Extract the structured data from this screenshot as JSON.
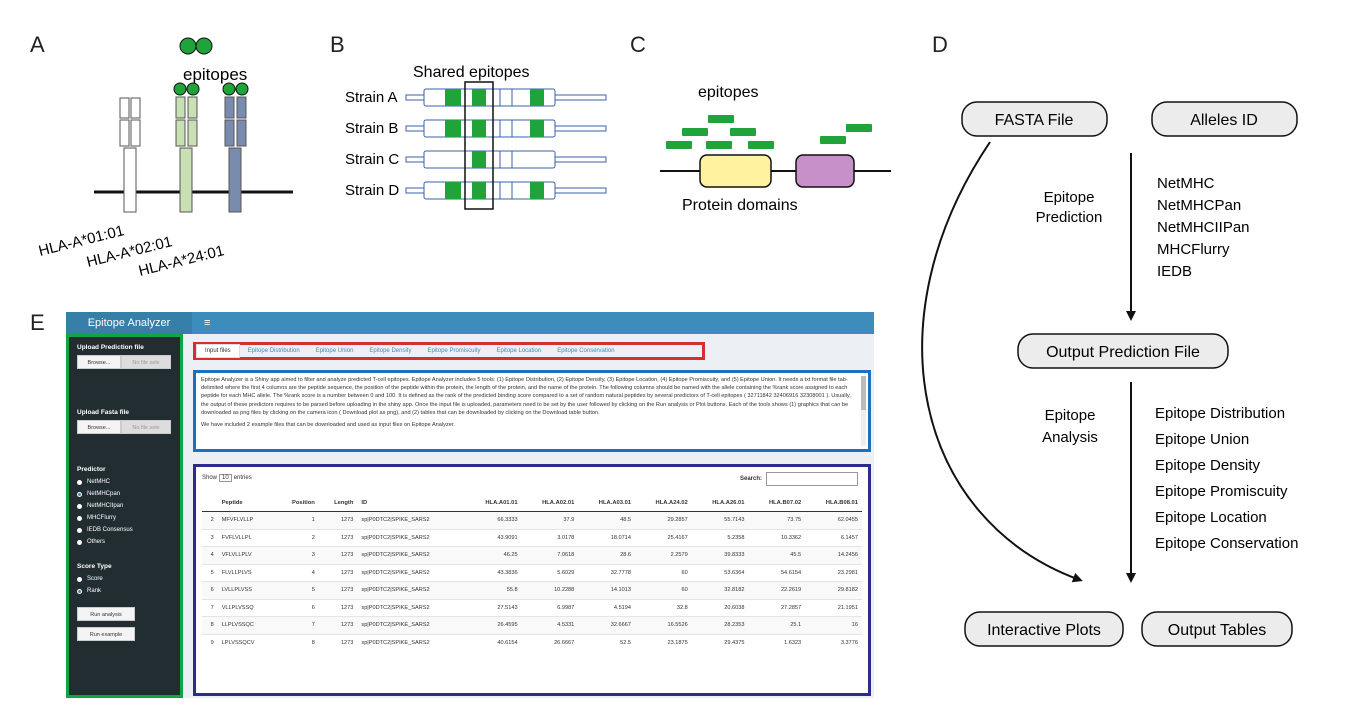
{
  "panels": {
    "a": {
      "letter": "A",
      "epitopes_label": "epitopes",
      "alleles": [
        "HLA-A*01:01",
        "HLA-A*02:01",
        "HLA-A*24:01"
      ]
    },
    "b": {
      "letter": "B",
      "shared_label": "Shared epitopes",
      "strains": [
        "Strain A",
        "Strain B",
        "Strain C",
        "Strain D"
      ]
    },
    "c": {
      "letter": "C",
      "epitopes_label": "epitopes",
      "domains_label": "Protein domains"
    },
    "d": {
      "letter": "D",
      "fasta": "FASTA File",
      "alleles": "Alleles ID",
      "prediction_label_1": "Epitope",
      "prediction_label_2": "Prediction",
      "predictors": [
        "NetMHC",
        "NetMHCPan",
        "NetMHCIIPan",
        "MHCFlurry",
        "IEDB"
      ],
      "output_prediction": "Output Prediction File",
      "analysis_label_1": "Epitope",
      "analysis_label_2": "Analysis",
      "analyses": [
        "Epitope Distribution",
        "Epitope Union",
        "Epitope Density",
        "Epitope Promiscuity",
        "Epitope Location",
        "Epitope Conservation"
      ],
      "plots": "Interactive Plots",
      "tables": "Output Tables"
    },
    "e": {
      "letter": "E"
    }
  },
  "colors": {
    "epitope_green": "#1fa33a",
    "light_green": "#c9e0b4",
    "slate_blue": "#7a8bb0",
    "domain_yellow": "#fff3a0",
    "domain_purple": "#c890c8",
    "sidebar_border": "#11a34a",
    "tabs_border": "#d32f2f",
    "desc_border": "#1f6fbf",
    "table_border": "#2c2c8a",
    "header_blue": "#3c8dbc"
  },
  "app": {
    "brand": "Epitope Analyzer",
    "menu_icon": "≡",
    "sidebar": {
      "upload_prediction_label": "Upload Prediction file",
      "upload_fasta_label": "Upload Fasta file",
      "browse": "Browse...",
      "no_file": "No file sele",
      "predictor_label": "Predictor",
      "predictors": [
        "NetMHC",
        "NetMHCpan",
        "NetMHCIIpan",
        "MHCFlurry",
        "IEDB Consensus",
        "Others"
      ],
      "predictor_selected": 1,
      "score_type_label": "Score Type",
      "score_types": [
        "Score",
        "Rank"
      ],
      "score_selected": 1,
      "run_analysis": "Run analysis",
      "run_example": "Run example"
    },
    "tabs": [
      "Input files",
      "Epitope Distribution",
      "Epitope Union",
      "Epitope Density",
      "Epitope Promiscuity",
      "Epitope Location",
      "Epitope Conservation"
    ],
    "desc": {
      "p1": "Epitope Analyzer is a Shiny app aimed to filter and analyze predicted T-cell epitopes. Epitope Analyzer includes 5 tools: (1) Epitope Distribution, (2) Epitope Density, (3) Epitope Location, (4) Epitope Promiscuity, and (5) Epitope Union. It needs a txt format file tab-delimited where the first 4 columns are the peptide sequence, the position of the peptide within the protein, the length of the protein, and the name of the protein. The following columns should be named with the allele containing the %rank score assigned to each peptide for each MHC allele. The %rank score is a number between 0 and 100. It is defined as the rank of the predicted binding score compared to a set of random natural peptides by several predictors of T-cell epitopes ( 32711842 32406916 32308001 ). Usually, the output of these predictors requires to be parsed before uploading in the shiny app. Once the input file is uploaded, parameters need to be set by the user followed by clicking on the Run analysis or Plot buttons. Each of the tools shows (1) graphics that can be downloaded as png files by clicking on the camera icon ( Download plot as png), and (2) tables that can be downloaded by clicking on the Download table button.",
      "p2": "We have included 2 example files that can be downloaded and used as input files on Epitope Analyzer."
    },
    "table": {
      "show": "Show",
      "show_value": "10",
      "entries": "entries",
      "search": "Search:",
      "columns": [
        "",
        "Peptide",
        "Position",
        "Length",
        "ID",
        "HLA.A01.01",
        "HLA.A02.01",
        "HLA.A03.01",
        "HLA.A24.02",
        "HLA.A26.01",
        "HLA.B07.02",
        "HLA.B08.01"
      ],
      "rows": [
        [
          "2",
          "MFVFLVLLP",
          "1",
          "1273",
          "sp|P0DTC2|SPIKE_SARS2",
          "66.3333",
          "37.9",
          "48.5",
          "29.2857",
          "55.7143",
          "73.75",
          "62.0455"
        ],
        [
          "3",
          "FVFLVLLPL",
          "2",
          "1273",
          "sp|P0DTC2|SPIKE_SARS2",
          "43.9091",
          "3.0178",
          "18.0714",
          "25.4167",
          "5.2358",
          "10.3362",
          "6.1457"
        ],
        [
          "4",
          "VFLVLLPLV",
          "3",
          "1273",
          "sp|P0DTC2|SPIKE_SARS2",
          "46.25",
          "7.0618",
          "28.6",
          "2.2579",
          "39.8333",
          "45.5",
          "14.2456"
        ],
        [
          "5",
          "FLVLLPLVS",
          "4",
          "1273",
          "sp|P0DTC2|SPIKE_SARS2",
          "43.3836",
          "5.6029",
          "32.7778",
          "60",
          "53.6364",
          "54.6154",
          "23.2981"
        ],
        [
          "6",
          "LVLLPLVSS",
          "5",
          "1273",
          "sp|P0DTC2|SPIKE_SARS2",
          "55.8",
          "10.2288",
          "14.1013",
          "60",
          "32.8182",
          "22.2619",
          "29.8182"
        ],
        [
          "7",
          "VLLPLVSSQ",
          "6",
          "1273",
          "sp|P0DTC2|SPIKE_SARS2",
          "27.5143",
          "6.9987",
          "4.5194",
          "32.8",
          "20.6038",
          "27.2857",
          "21.1951"
        ],
        [
          "8",
          "LLPLVSSQC",
          "7",
          "1273",
          "sp|P0DTC2|SPIKE_SARS2",
          "26.4595",
          "4.5331",
          "32.6667",
          "16.5526",
          "28.2353",
          "25.1",
          "16"
        ],
        [
          "9",
          "LPLVSSQCV",
          "8",
          "1273",
          "sp|P0DTC2|SPIKE_SARS2",
          "40.6154",
          "26.6667",
          "52.5",
          "23.1875",
          "29.4375",
          "1.6323",
          "3.3776"
        ]
      ]
    }
  }
}
